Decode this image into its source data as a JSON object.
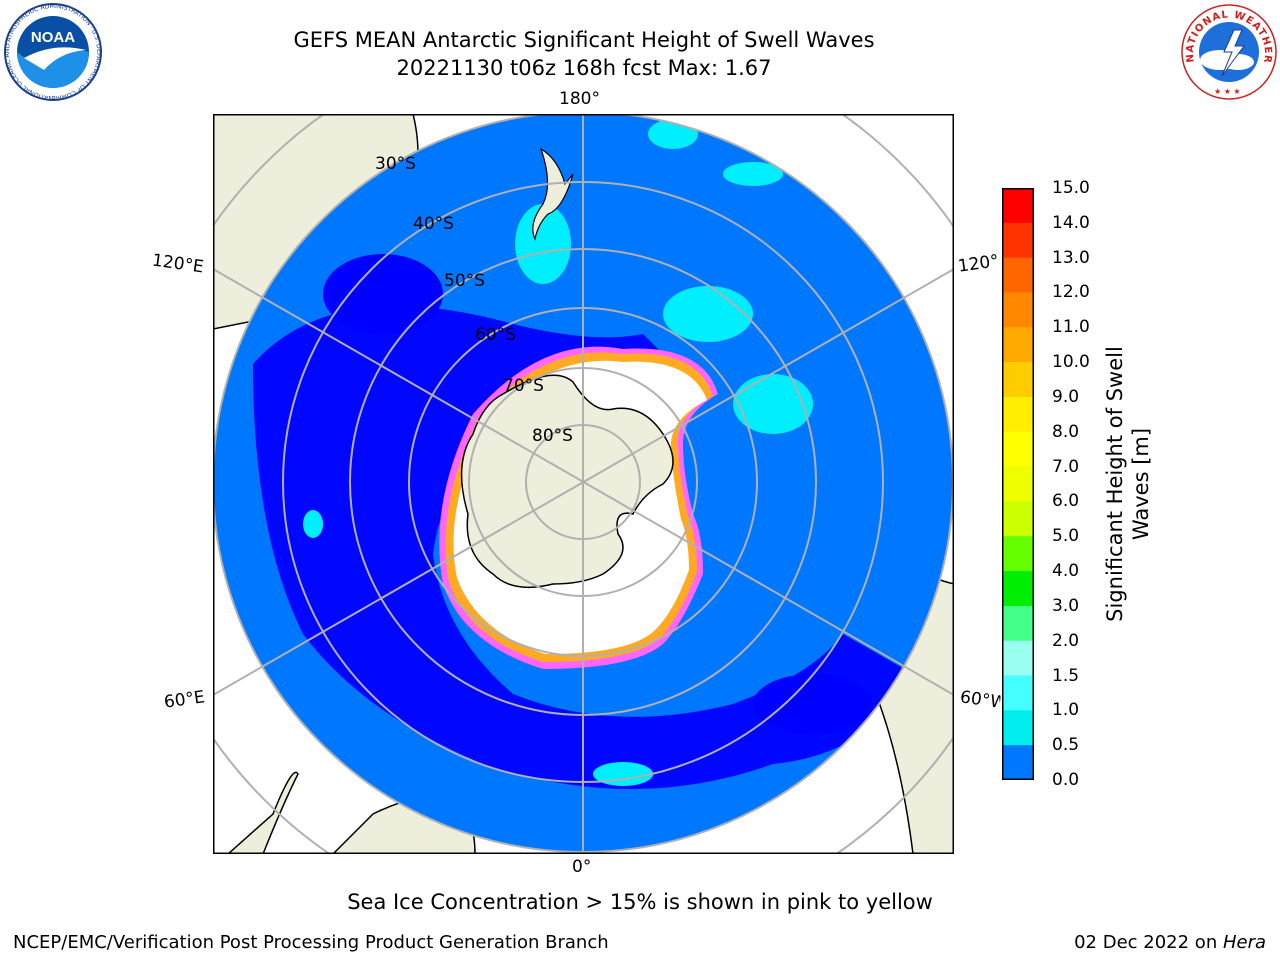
{
  "header": {
    "title_line1": "GEFS MEAN Antarctic Significant Height of Swell Waves",
    "title_line2": "20221130 t06z 168h fcst   Max: 1.67"
  },
  "logos": {
    "noaa_text": "NOAA",
    "noaa_ring_text": "NATIONAL OCEANIC AND ATMOSPHERIC ADMINISTRATION · U.S. DEPARTMENT OF COMMERCE",
    "nws_ring_text": "NATIONAL WEATHER SERVICE"
  },
  "map": {
    "projection": "south-polar-stereographic",
    "longitude_labels": {
      "top": "180°",
      "bottom": "0°",
      "upper_left": "120°E",
      "upper_right": "120°W",
      "lower_left": "60°E",
      "lower_right": "60°W"
    },
    "latitude_labels": [
      "30°S",
      "40°S",
      "50°S",
      "60°S",
      "70°S",
      "80°S"
    ],
    "colors": {
      "land": "#eeeedc",
      "ocean_low": "#0077ff",
      "ocean_lowest": "#0000ff",
      "swell_15": "#00eeff",
      "swell_2": "#66ffff",
      "sea_ice": "#ffffff",
      "ice_edge_pink": "#ff66ff",
      "ice_edge_orange": "#ffaa22",
      "grid": "#b0b0b0"
    }
  },
  "colorbar": {
    "label": "Significant Height of Swell Waves [m]",
    "ticks": [
      "15.0",
      "14.0",
      "13.0",
      "12.0",
      "11.0",
      "10.0",
      "9.0",
      "8.0",
      "7.0",
      "6.0",
      "5.0",
      "4.0",
      "3.0",
      "2.0",
      "1.5",
      "1.0",
      "0.5",
      "0.0"
    ],
    "colors": [
      "#ff0000",
      "#ff3300",
      "#ff6600",
      "#ff8800",
      "#ffaa00",
      "#ffcc00",
      "#ffee00",
      "#ffff00",
      "#eeff00",
      "#ccff00",
      "#66ff00",
      "#00ee00",
      "#44ff88",
      "#99ffee",
      "#44ffff",
      "#00eeee",
      "#0077ff",
      "#0000ff"
    ]
  },
  "caption": "Sea Ice Concentration > 15% is shown in pink to yellow",
  "footer": {
    "left": "NCEP/EMC/Verification Post Processing Product Generation Branch",
    "right_date": "02 Dec 2022 on ",
    "right_host": "Hera"
  }
}
